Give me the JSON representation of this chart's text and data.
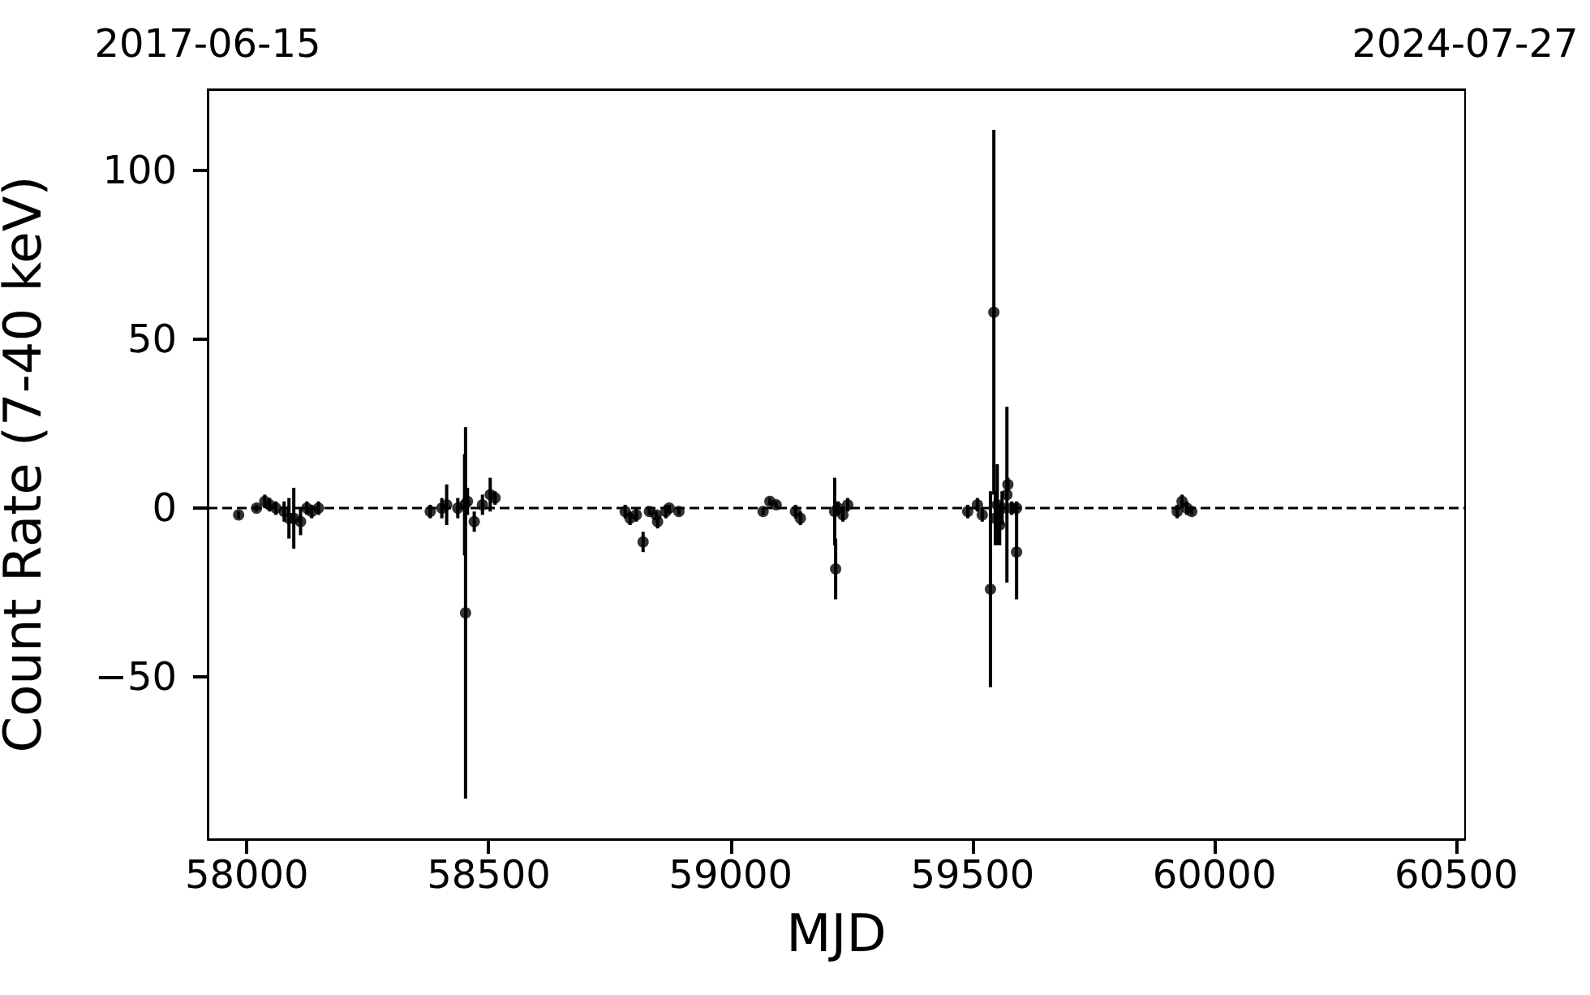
{
  "chart_data": {
    "type": "scatter",
    "xlabel": "MJD",
    "ylabel": "Count Rate (7-40 keV)",
    "marker": "circle",
    "xlim": [
      57919,
      60518
    ],
    "xticks": [
      58000,
      58500,
      59000,
      59500,
      60000,
      60500
    ],
    "x2lim": [
      "2017-06-15",
      "2024-07-27"
    ],
    "x2ticks": [
      "2017-06-15",
      "2024-07-27"
    ],
    "ylim": [
      -98,
      124
    ],
    "yticks": [
      -50,
      0,
      50,
      100
    ],
    "ref_lines": [
      {
        "axis": "y",
        "value": 0,
        "label": null,
        "color": "#000000",
        "line_style": "dashed"
      }
    ],
    "series": [
      {
        "color": "#000000",
        "x": [
          57983,
          58020,
          58037,
          58047,
          58060,
          58077,
          58087,
          58097,
          58111,
          58124,
          58134,
          58148,
          58379,
          58403,
          58413,
          58436,
          58450,
          58452,
          58456,
          58470,
          58487,
          58503,
          58513,
          58782,
          58792,
          58805,
          58819,
          58832,
          58846,
          58849,
          58866,
          58873,
          58893,
          59067,
          59081,
          59094,
          59134,
          59144,
          59215,
          59217,
          59222,
          59232,
          59242,
          59490,
          59510,
          59520,
          59537,
          59544,
          59547,
          59551,
          59556,
          59561,
          59571,
          59573,
          59581,
          59591,
          59591,
          59923,
          59933,
          59943,
          59953
        ],
        "values": [
          -2,
          0,
          2,
          1,
          0,
          -1,
          -3,
          -3,
          -4,
          0,
          -1,
          0,
          -1,
          0,
          1,
          0,
          1,
          -31,
          2,
          -4,
          1,
          4,
          3,
          -1,
          -3,
          -2,
          -10,
          -1,
          -2,
          -4,
          -1,
          0,
          -1,
          -1,
          2,
          1,
          -1,
          -3,
          -1,
          -18,
          0,
          -2,
          1,
          -1,
          1,
          -2,
          -24,
          58,
          -3,
          1,
          -5,
          0,
          4,
          7,
          0,
          -13,
          0,
          -1,
          2,
          0,
          -1
        ],
        "errors": [
          1,
          1,
          2,
          2,
          2,
          3,
          6,
          9,
          4,
          2,
          2,
          2,
          2,
          3,
          6,
          3,
          15,
          55,
          4,
          3,
          3,
          5,
          2,
          2,
          2,
          2,
          3,
          1,
          1,
          2,
          2,
          1,
          1,
          1,
          1,
          1,
          2,
          2,
          10,
          9,
          2,
          2,
          2,
          2,
          2,
          2,
          29,
          54,
          8,
          12,
          6,
          5,
          26,
          2,
          2,
          14,
          2,
          2,
          2,
          2,
          1
        ]
      }
    ]
  }
}
